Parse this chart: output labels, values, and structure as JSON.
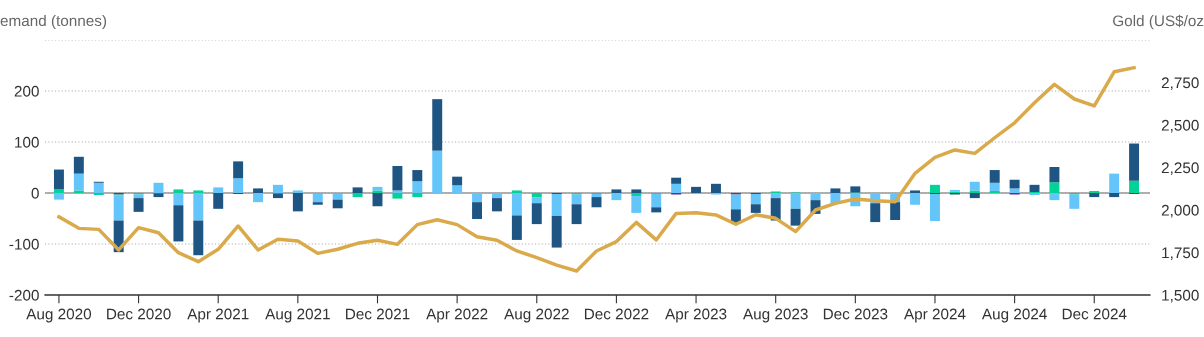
{
  "chart_data": {
    "type": "bar",
    "stacked": true,
    "ylabel": "emand (tonnes)",
    "y2label": "Gold (US$/oz",
    "categories": [
      "Aug 2020",
      null,
      null,
      null,
      "Dec 2020",
      null,
      null,
      null,
      "Apr 2021",
      null,
      null,
      null,
      "Aug 2021",
      null,
      null,
      null,
      "Dec 2021",
      null,
      null,
      null,
      "Apr 2022",
      null,
      null,
      null,
      "Aug 2022",
      null,
      null,
      null,
      "Dec 2022",
      null,
      null,
      null,
      "Apr 2023",
      null,
      null,
      null,
      "Aug 2023",
      null,
      null,
      null,
      "Dec 2023",
      null,
      null,
      null,
      "Apr 2024",
      null,
      null,
      null,
      "Aug 2024",
      null,
      null,
      null,
      "Dec 2024",
      null,
      null
    ],
    "series": [
      {
        "color": "#6a2c91",
        "values": [
          null,
          null,
          null,
          -3,
          null,
          -1,
          null,
          null,
          null,
          -2,
          null,
          null,
          null,
          null,
          null,
          null,
          null,
          null,
          null,
          null,
          null,
          null,
          null,
          null,
          null,
          -2,
          null,
          null,
          null,
          null,
          -1,
          -3,
          null,
          null,
          -3,
          -2,
          null,
          null,
          null,
          null,
          null,
          null,
          null,
          null,
          -2,
          null,
          null,
          null,
          -3,
          null,
          null,
          null,
          null,
          -2,
          -2
        ]
      },
      {
        "color": "#00d395",
        "values": [
          7,
          5,
          -4,
          -2,
          -3,
          null,
          7,
          5,
          null,
          null,
          null,
          -1,
          null,
          -1,
          -1,
          -8,
          5,
          -11,
          -8,
          null,
          null,
          null,
          null,
          5,
          -9,
          null,
          -3,
          -2,
          null,
          -6,
          null,
          null,
          null,
          null,
          null,
          null,
          3,
          1,
          null,
          null,
          1,
          null,
          null,
          null,
          16,
          3,
          5,
          4,
          null,
          2,
          21,
          -3,
          4,
          null,
          24
        ]
      },
      {
        "color": "#63c5fa",
        "values": [
          -13,
          33,
          20,
          -49,
          -7,
          20,
          -24,
          -54,
          11,
          29,
          -18,
          16,
          5,
          -17,
          -12,
          0,
          7,
          5,
          23,
          83,
          15,
          -18,
          -10,
          -44,
          -11,
          -43,
          -19,
          -6,
          -14,
          -33,
          -27,
          18,
          0,
          -3,
          -29,
          -20,
          -10,
          -31,
          -14,
          -21,
          -26,
          -20,
          -18,
          -23,
          -53,
          3,
          17,
          16,
          9,
          -4,
          -14,
          -28,
          0,
          38,
          0
        ]
      },
      {
        "color": "#1f5582",
        "values": [
          39,
          33,
          2,
          -62,
          -27,
          -7,
          -71,
          -68,
          -31,
          33,
          9,
          -9,
          -36,
          -5,
          -17,
          11,
          -26,
          48,
          22,
          101,
          17,
          -33,
          -26,
          -48,
          -41,
          -62,
          -39,
          -20,
          7,
          7,
          -10,
          12,
          12,
          18,
          -27,
          -17,
          -44,
          -33,
          -27,
          9,
          12,
          -37,
          -35,
          5,
          0,
          -3,
          -10,
          25,
          17,
          14,
          30,
          0,
          -8,
          -6,
          73
        ]
      },
      {
        "type": "line",
        "axis": "y2",
        "color": "#d9a94a",
        "values": [
          1960,
          1892,
          1886,
          1765,
          1896,
          1866,
          1749,
          1696,
          1769,
          1906,
          1765,
          1828,
          1818,
          1745,
          1769,
          1804,
          1822,
          1798,
          1914,
          1943,
          1914,
          1843,
          1822,
          1759,
          1720,
          1676,
          1641,
          1759,
          1814,
          1927,
          1824,
          1980,
          1984,
          1971,
          1916,
          1972,
          1951,
          1873,
          2000,
          2039,
          2065,
          2055,
          2049,
          2216,
          2310,
          2353,
          2333,
          2425,
          2513,
          2631,
          2739,
          2653,
          2612,
          2813,
          2837
        ]
      }
    ],
    "ylim": [
      -200,
      300
    ],
    "yticks": [
      -200,
      -100,
      0,
      100,
      200,
      {
        "value": 300,
        "label": null
      }
    ],
    "y2lim": [
      1500,
      3000
    ],
    "y2ticks": [
      {
        "value": 1500,
        "label": "1,500"
      },
      {
        "value": 1750,
        "label": "1,750"
      },
      {
        "value": 2000,
        "label": "2,000"
      },
      {
        "value": 2250,
        "label": "2,250"
      },
      {
        "value": 2500,
        "label": "2,500"
      },
      {
        "value": 2750,
        "label": "2,750"
      }
    ],
    "ref_lines": [
      {
        "axis": "y",
        "value": 0,
        "color": "#999999"
      }
    ],
    "grid": "y"
  }
}
